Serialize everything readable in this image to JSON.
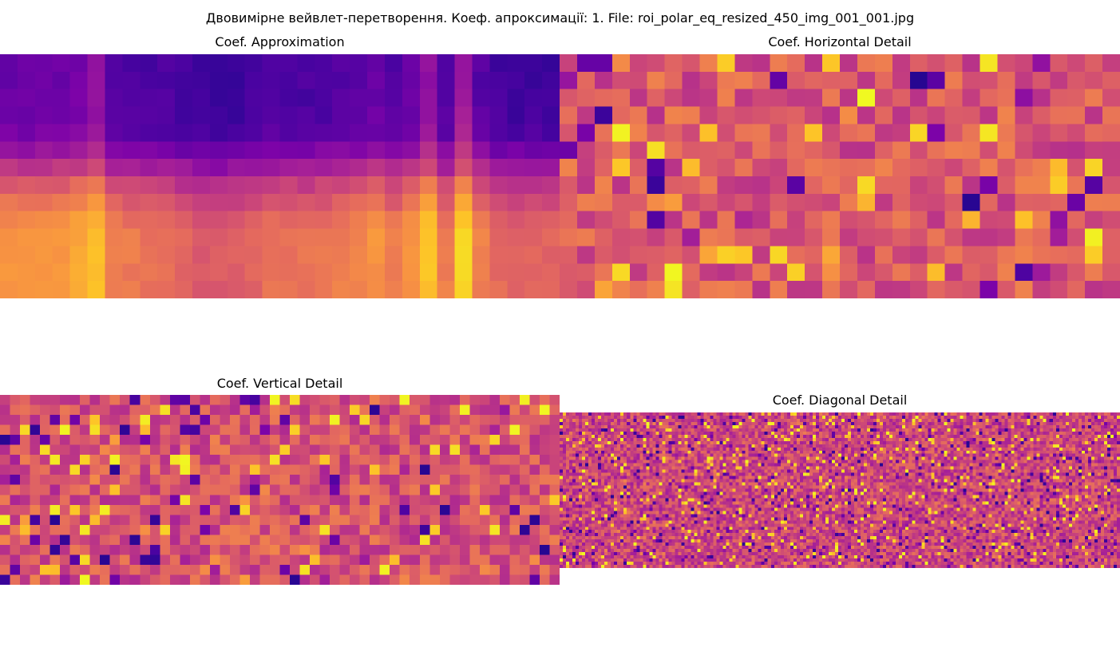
{
  "figure": {
    "title": "Двовимірне вейвлет-перетворення. Коеф. апроксимації: 1. File: roi_polar_eq_resized_450_img_001_001.jpg"
  },
  "chart_data": [
    {
      "type": "heatmap",
      "title": "Coef. Approximation",
      "colormap": "plasma",
      "axes": "off",
      "grid": false,
      "rows": 14,
      "cols": 32,
      "column_profile": [
        0.3,
        0.3,
        0.32,
        0.32,
        0.38,
        0.48,
        0.2,
        0.16,
        0.13,
        0.12,
        0.06,
        0.0,
        0.0,
        0.02,
        0.05,
        0.12,
        0.12,
        0.12,
        0.14,
        0.18,
        0.22,
        0.28,
        0.18,
        0.3,
        0.5,
        0.18,
        0.55,
        0.2,
        0.08,
        0.04,
        0.04,
        0.04
      ],
      "row_profile": [
        0.05,
        0.06,
        0.08,
        0.1,
        0.18,
        0.4,
        0.6,
        0.78,
        0.88,
        0.96,
        1.0,
        1.0,
        1.0,
        1.0
      ]
    },
    {
      "type": "heatmap",
      "title": "Coef. Horizontal Detail",
      "colormap": "plasma",
      "axes": "off",
      "grid": false,
      "rows": 14,
      "cols": 32,
      "baseline": 0.56
    },
    {
      "type": "heatmap",
      "title": "Coef. Vertical Detail",
      "colormap": "plasma",
      "axes": "off",
      "grid": false,
      "rows": 19,
      "cols": 56,
      "baseline": 0.55
    },
    {
      "type": "heatmap",
      "title": "Coef. Diagonal Detail",
      "colormap": "plasma",
      "axes": "off",
      "grid": false,
      "rows": 49,
      "cols": 175,
      "baseline": 0.5
    }
  ]
}
